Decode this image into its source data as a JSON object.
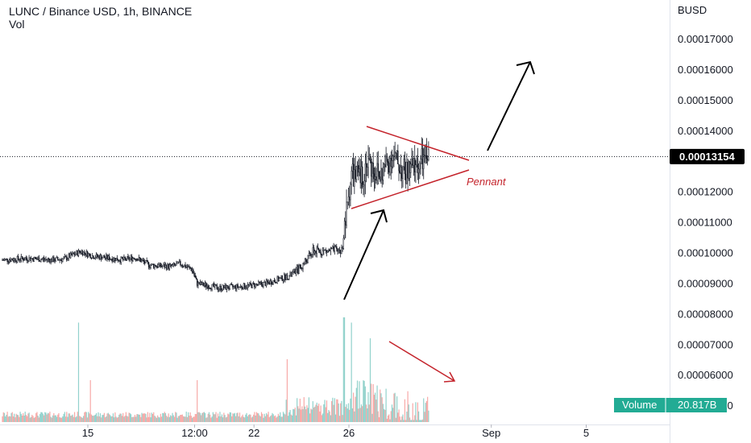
{
  "header": {
    "symbol_line": "LUNC / Binance USD, 1h, BINANCE",
    "indicator": "Vol"
  },
  "price_axis": {
    "currency": "BUSD",
    "ticks": [
      {
        "label": "0.00017000",
        "value": 0.00017
      },
      {
        "label": "0.00016000",
        "value": 0.00016
      },
      {
        "label": "0.00015000",
        "value": 0.00015
      },
      {
        "label": "0.00014000",
        "value": 0.00014
      },
      {
        "label": "0.00012000",
        "value": 0.00012
      },
      {
        "label": "0.00011000",
        "value": 0.00011
      },
      {
        "label": "0.00010000",
        "value": 0.0001
      },
      {
        "label": "0.00009000",
        "value": 9e-05
      },
      {
        "label": "0.00008000",
        "value": 8e-05
      },
      {
        "label": "0.00007000",
        "value": 7e-05
      },
      {
        "label": "0.00006000",
        "value": 6e-05
      },
      {
        "label": "0.00005000",
        "value": 5e-05
      }
    ],
    "last_price_label": "0.00013154",
    "last_price": 0.00013154
  },
  "time_axis": {
    "ticks": [
      {
        "label": "15",
        "day": 15
      },
      {
        "label": "12:00",
        "day": 19.5
      },
      {
        "label": "22",
        "day": 22
      },
      {
        "label": "26",
        "day": 26
      },
      {
        "label": "Sep",
        "day": 32
      },
      {
        "label": "5",
        "day": 36
      }
    ]
  },
  "volume_badge": {
    "label": "Volume",
    "value": "20.817B"
  },
  "annotations": {
    "pattern_label": "Pennant"
  },
  "colors": {
    "up": "#26a69a",
    "down": "#ef5350",
    "candle": "#131722",
    "pennant": "#c4232b",
    "arrow": "#000000",
    "badge": "#22ab94",
    "last_price_bg": "#000000"
  },
  "chart_data": {
    "type": "candlestick",
    "title": "LUNC / Binance USD, 1h, BINANCE",
    "ylabel": "BUSD",
    "ylim": [
      8.25e-05,
      0.0001802
    ],
    "x_unit": "day of month (Aug 2022, Sep continues after 31)",
    "xlim": [
      11.4,
      37.5
    ],
    "close_anchors": [
      {
        "day": 11.4,
        "close": 9.77e-05
      },
      {
        "day": 12.5,
        "close": 9.82e-05
      },
      {
        "day": 13.5,
        "close": 9.77e-05
      },
      {
        "day": 14.0,
        "close": 9.8e-05
      },
      {
        "day": 14.7,
        "close": 0.0001005
      },
      {
        "day": 15.2,
        "close": 9.9e-05
      },
      {
        "day": 16.5,
        "close": 9.77e-05
      },
      {
        "day": 17.0,
        "close": 9.85e-05
      },
      {
        "day": 17.6,
        "close": 9.6e-05
      },
      {
        "day": 18.5,
        "close": 9.55e-05
      },
      {
        "day": 18.9,
        "close": 9.65e-05
      },
      {
        "day": 19.4,
        "close": 9.45e-05
      },
      {
        "day": 19.6,
        "close": 9e-05
      },
      {
        "day": 20.5,
        "close": 8.85e-05
      },
      {
        "day": 21.5,
        "close": 8.9e-05
      },
      {
        "day": 22.5,
        "close": 9e-05
      },
      {
        "day": 23.5,
        "close": 9.25e-05
      },
      {
        "day": 24.0,
        "close": 9.55e-05
      },
      {
        "day": 24.5,
        "close": 0.0001005
      },
      {
        "day": 25.7,
        "close": 0.0001008
      },
      {
        "day": 25.9,
        "close": 0.000113
      },
      {
        "day": 26.1,
        "close": 0.000126
      },
      {
        "day": 26.5,
        "close": 0.000124
      },
      {
        "day": 26.8,
        "close": 0.00013
      },
      {
        "day": 27.3,
        "close": 0.000125
      },
      {
        "day": 27.8,
        "close": 0.000132
      },
      {
        "day": 28.4,
        "close": 0.000126
      },
      {
        "day": 28.9,
        "close": 0.000129
      },
      {
        "day": 29.4,
        "close": 0.0001315
      }
    ],
    "volume_spikes": [
      {
        "day": 14.6,
        "rel": 0.95
      },
      {
        "day": 15.1,
        "rel": 0.4
      },
      {
        "day": 19.6,
        "rel": 0.4
      },
      {
        "day": 23.4,
        "rel": 0.6
      },
      {
        "day": 25.8,
        "rel": 1.0
      },
      {
        "day": 26.1,
        "rel": 0.95
      },
      {
        "day": 26.9,
        "rel": 0.8
      }
    ]
  }
}
